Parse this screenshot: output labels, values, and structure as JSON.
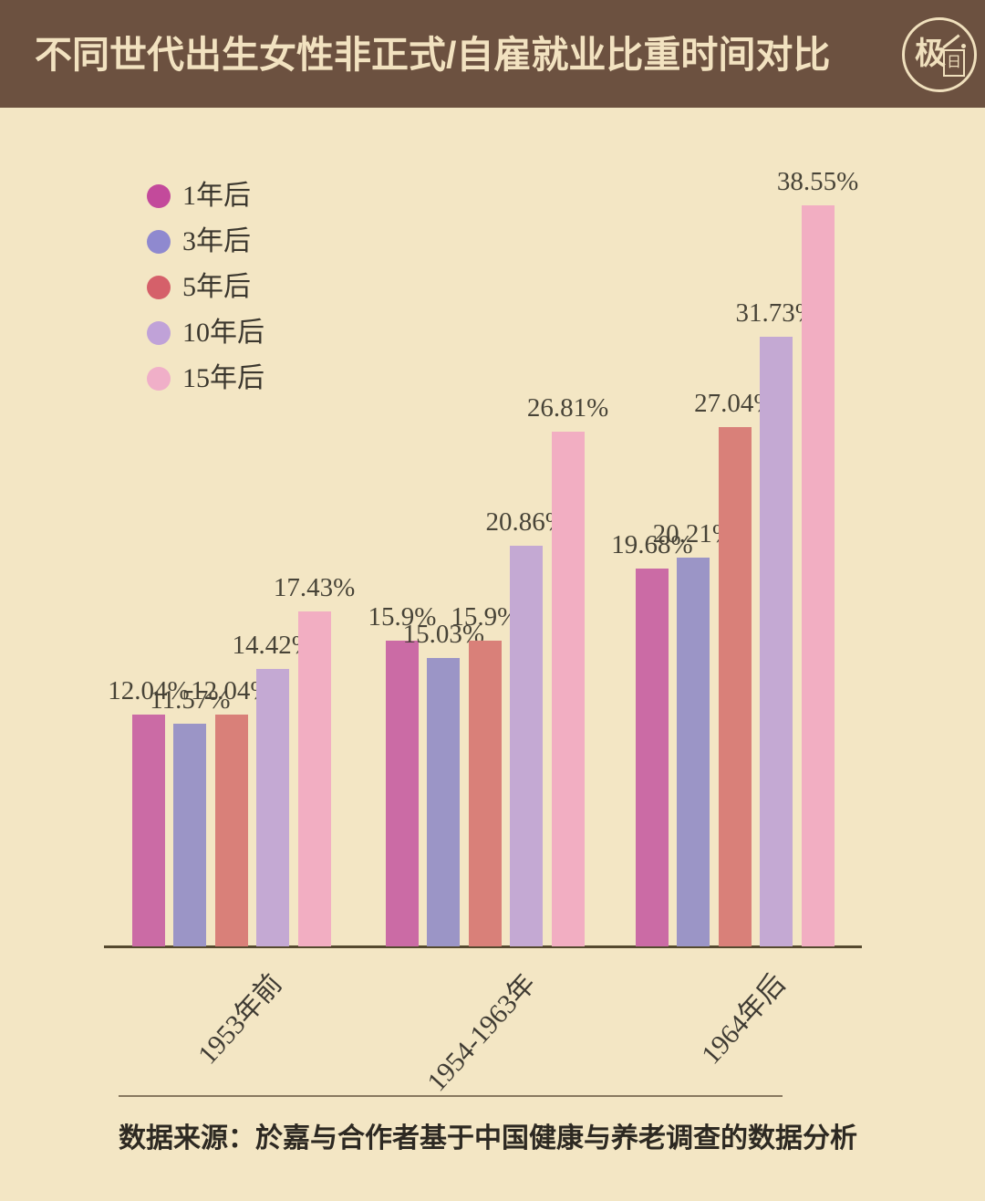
{
  "header": {
    "title": "不同世代出生女性非正式/自雇就业比重时间对比",
    "logo_char_left": "极",
    "logo_char_right": "日",
    "bg_color": "#6c5140",
    "text_color": "#f2e2c0"
  },
  "chart_data": {
    "type": "bar",
    "title": "不同世代出生女性非正式/自雇就业比重时间对比",
    "categories": [
      "1953年前",
      "1954-1963年",
      "1964年后"
    ],
    "series": [
      {
        "name": "1年后",
        "legend_color": "#c34a9b",
        "bar_color": "#cb6ba5",
        "values": [
          12.04,
          15.9,
          19.68
        ]
      },
      {
        "name": "3年后",
        "legend_color": "#8f89cf",
        "bar_color": "#9b95c6",
        "values": [
          11.57,
          15.03,
          20.21
        ]
      },
      {
        "name": "5年后",
        "legend_color": "#d5606a",
        "bar_color": "#d98079",
        "values": [
          12.04,
          15.9,
          27.04
        ]
      },
      {
        "name": "10年后",
        "legend_color": "#c0a2d8",
        "bar_color": "#c4a9d3",
        "values": [
          14.42,
          20.86,
          31.73
        ]
      },
      {
        "name": "15年后",
        "legend_color": "#f0afc8",
        "bar_color": "#f2aec2",
        "values": [
          17.43,
          26.81,
          38.55
        ]
      }
    ],
    "value_labels": [
      [
        "12.04%",
        "15.9%",
        "19.68%"
      ],
      [
        "11.57%",
        "15.03%",
        "20.21%"
      ],
      [
        "12.04%",
        "15.9%",
        "27.04%"
      ],
      [
        "14.42%",
        "20.86%",
        "31.73%"
      ],
      [
        "17.43%",
        "26.81%",
        "38.55%"
      ]
    ],
    "value_suffix": "%",
    "ylim": [
      0,
      40
    ],
    "grid": false,
    "legend_position": "upper-left"
  },
  "footer": {
    "source_text": "数据来源：於嘉与合作者基于中国健康与养老调查的数据分析"
  },
  "colors": {
    "background": "#f3e6c4",
    "axis": "#55492f",
    "value_label_text": "#474337",
    "tick_text": "#3f3b33",
    "legend_text": "#3b372e"
  }
}
